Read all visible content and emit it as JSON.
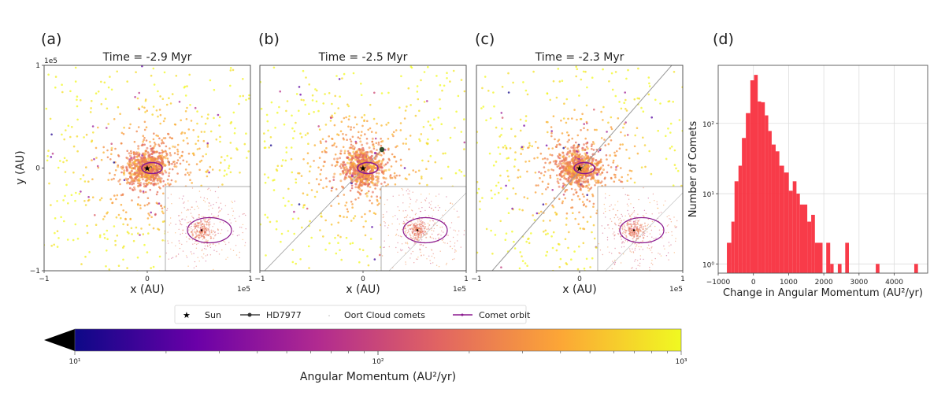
{
  "colors": {
    "background": "#ffffff",
    "histogram_bar": "#f8303f",
    "orbit": "#8b1a8f",
    "sun": "#000000",
    "hd7977": "#2f4f2f",
    "plasma": [
      "#0d0887",
      "#6a00a8",
      "#b12a90",
      "#e16462",
      "#fca636",
      "#f0f921"
    ]
  },
  "chart_data": [
    {
      "panel": "(a)",
      "type": "scatter",
      "title": "Time = -2.9 Myr",
      "xlabel": "x (AU)",
      "ylabel": "y (AU)",
      "xlim": [
        -100000,
        100000
      ],
      "ylim": [
        -100000,
        100000
      ],
      "xticks": [
        "−1",
        "0",
        "1"
      ],
      "yticks": [
        "1",
        "0",
        "−1"
      ],
      "x_offset_label": "1e5",
      "y_offset_label": "1e5",
      "inset": true,
      "hd7977_visible": false,
      "hd7977_track": "none"
    },
    {
      "panel": "(b)",
      "type": "scatter",
      "title": "Time = -2.5 Myr",
      "xlabel": "x (AU)",
      "xlim": [
        -100000,
        100000
      ],
      "ylim": [
        -100000,
        100000
      ],
      "xticks": [
        "−1",
        "0",
        "1"
      ],
      "x_offset_label": "1e5",
      "inset": true,
      "hd7977_visible": true,
      "hd7977_track": "partial"
    },
    {
      "panel": "(c)",
      "type": "scatter",
      "title": "Time = -2.3 Myr",
      "xlabel": "x (AU)",
      "xlim": [
        -100000,
        100000
      ],
      "ylim": [
        -100000,
        100000
      ],
      "xticks": [
        "−1",
        "0",
        "1"
      ],
      "x_offset_label": "1e5",
      "inset": true,
      "hd7977_visible": false,
      "hd7977_track": "full"
    },
    {
      "panel": "(d)",
      "type": "bar",
      "title": "",
      "xlabel": "Change in Angular Momentum (AU²/yr)",
      "ylabel": "Number of Comets",
      "xlim": [
        -1000,
        4950
      ],
      "ylim": [
        0.74,
        670
      ],
      "yscale": "log",
      "grid": true,
      "xticks": [
        -1000,
        0,
        1000,
        2000,
        3000,
        4000
      ],
      "xtick_labels": [
        "−1000",
        "0",
        "1000",
        "2000",
        "3000",
        "4000"
      ],
      "yticks": [
        1,
        10,
        100
      ],
      "ytick_labels": [
        "10⁰",
        "10¹",
        "10²"
      ],
      "bins": [
        [
          -753,
          -626,
          2
        ],
        [
          -626,
          -536,
          4
        ],
        [
          -536,
          -424,
          15
        ],
        [
          -424,
          -326,
          25
        ],
        [
          -326,
          -214,
          62
        ],
        [
          -214,
          -87,
          140
        ],
        [
          -87,
          18,
          410
        ],
        [
          18,
          123,
          490
        ],
        [
          123,
          220,
          205
        ],
        [
          220,
          325,
          200
        ],
        [
          325,
          422,
          130
        ],
        [
          422,
          519,
          78
        ],
        [
          519,
          632,
          50
        ],
        [
          632,
          737,
          40
        ],
        [
          737,
          871,
          25
        ],
        [
          871,
          1006,
          20
        ],
        [
          1006,
          1118,
          11
        ],
        [
          1118,
          1223,
          15
        ],
        [
          1223,
          1320,
          10
        ],
        [
          1320,
          1530,
          7
        ],
        [
          1530,
          1642,
          4
        ],
        [
          1642,
          1747,
          5
        ],
        [
          1747,
          1964,
          2
        ],
        [
          2069,
          2181,
          2
        ],
        [
          2181,
          2278,
          1
        ],
        [
          2398,
          2503,
          1
        ],
        [
          2608,
          2713,
          2
        ],
        [
          3476,
          3581,
          1
        ],
        [
          4569,
          4674,
          1
        ]
      ]
    }
  ],
  "legend": {
    "items": [
      {
        "label": "Sun",
        "marker": "star"
      },
      {
        "label": "HD7977",
        "marker": "line-dot"
      },
      {
        "label": "Oort Cloud comets",
        "marker": "dot"
      },
      {
        "label": "Comet orbit",
        "marker": "line-purple"
      }
    ]
  },
  "colorbar": {
    "label": "Angular Momentum (AU²/yr)",
    "scale": "log",
    "range": [
      10,
      1000
    ],
    "extend": "min",
    "colormap": "plasma",
    "tick_labels": [
      "10¹",
      "10²",
      "10³"
    ]
  }
}
